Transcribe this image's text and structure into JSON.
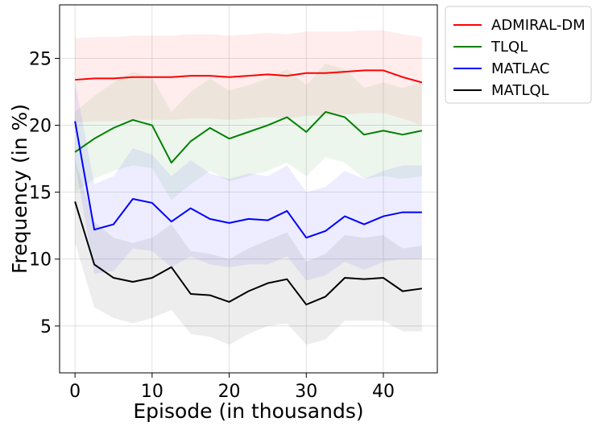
{
  "chart_data": {
    "type": "line",
    "title": "",
    "xlabel": "Episode (in thousands)",
    "ylabel": "Frequency (in %)",
    "xlim": [
      -2,
      47
    ],
    "ylim": [
      1.5,
      29
    ],
    "xticks": [
      0,
      10,
      20,
      30,
      40
    ],
    "yticks": [
      5,
      10,
      15,
      20,
      25
    ],
    "grid": true,
    "legend_position": "outside-top-right",
    "x": [
      0,
      2.5,
      5,
      7.5,
      10,
      12.5,
      15,
      17.5,
      20,
      22.5,
      25,
      27.5,
      30,
      32.5,
      35,
      37.5,
      40,
      42.5,
      45
    ],
    "series": [
      {
        "name": "ADMIRAL-DM",
        "color": "#ff0000",
        "values": [
          23.4,
          23.5,
          23.5,
          23.6,
          23.6,
          23.6,
          23.7,
          23.7,
          23.6,
          23.7,
          23.8,
          23.7,
          23.9,
          23.9,
          24.0,
          24.1,
          24.1,
          23.6,
          23.2
        ],
        "upper": [
          26.5,
          26.6,
          26.6,
          26.7,
          26.7,
          26.7,
          26.8,
          26.8,
          26.7,
          26.8,
          26.9,
          26.8,
          27.0,
          27.0,
          27.0,
          27.1,
          27.1,
          26.8,
          26.6
        ],
        "lower": [
          20.2,
          20.3,
          20.3,
          20.4,
          20.4,
          20.4,
          20.5,
          20.5,
          20.4,
          20.5,
          20.6,
          20.5,
          20.7,
          20.7,
          20.8,
          20.9,
          20.9,
          20.5,
          20.0
        ]
      },
      {
        "name": "TLQL",
        "color": "#008000",
        "values": [
          18.0,
          19.0,
          19.8,
          20.4,
          20.0,
          17.2,
          18.8,
          19.8,
          19.0,
          19.5,
          20.0,
          20.6,
          19.5,
          21.0,
          20.6,
          19.3,
          19.6,
          19.3,
          19.6
        ],
        "upper": [
          21.0,
          22.2,
          23.2,
          24.0,
          23.6,
          21.0,
          22.5,
          23.5,
          22.6,
          23.0,
          23.5,
          24.2,
          23.0,
          24.6,
          24.2,
          22.8,
          23.2,
          22.8,
          23.2
        ],
        "lower": [
          15.0,
          16.0,
          16.6,
          17.0,
          16.8,
          14.4,
          15.6,
          16.6,
          15.8,
          16.2,
          16.6,
          17.2,
          16.2,
          17.6,
          17.2,
          16.0,
          16.2,
          16.0,
          16.2
        ]
      },
      {
        "name": "MATLAC",
        "color": "#0000ff",
        "values": [
          20.3,
          12.2,
          12.6,
          14.5,
          14.2,
          12.8,
          13.8,
          13.0,
          12.7,
          13.0,
          12.9,
          13.6,
          11.6,
          12.1,
          13.2,
          12.6,
          13.2,
          13.5,
          13.5
        ],
        "upper": [
          23.3,
          15.6,
          16.2,
          18.3,
          17.8,
          16.2,
          17.4,
          16.4,
          16.0,
          16.4,
          16.2,
          17.0,
          15.0,
          15.4,
          16.6,
          16.0,
          16.6,
          17.0,
          17.0
        ],
        "lower": [
          17.3,
          8.9,
          9.1,
          10.8,
          10.6,
          9.4,
          10.2,
          9.6,
          9.4,
          9.6,
          9.6,
          10.2,
          8.4,
          8.8,
          9.8,
          9.2,
          9.8,
          10.0,
          10.0
        ]
      },
      {
        "name": "MATLQL",
        "color": "#000000",
        "values": [
          14.3,
          9.6,
          8.6,
          8.3,
          8.6,
          9.4,
          7.4,
          7.3,
          6.8,
          7.6,
          8.2,
          8.5,
          6.6,
          7.2,
          8.6,
          8.5,
          8.6,
          7.6,
          7.8
        ],
        "upper": [
          17.4,
          12.8,
          11.6,
          11.2,
          11.6,
          12.6,
          10.6,
          10.4,
          10.0,
          10.8,
          11.4,
          12.0,
          9.8,
          10.4,
          11.8,
          11.6,
          11.8,
          10.8,
          11.0
        ],
        "lower": [
          11.2,
          6.4,
          5.6,
          5.2,
          5.6,
          6.2,
          4.4,
          4.2,
          3.6,
          4.4,
          5.0,
          5.2,
          3.6,
          4.0,
          5.4,
          5.4,
          5.4,
          4.6,
          4.6
        ]
      }
    ]
  }
}
